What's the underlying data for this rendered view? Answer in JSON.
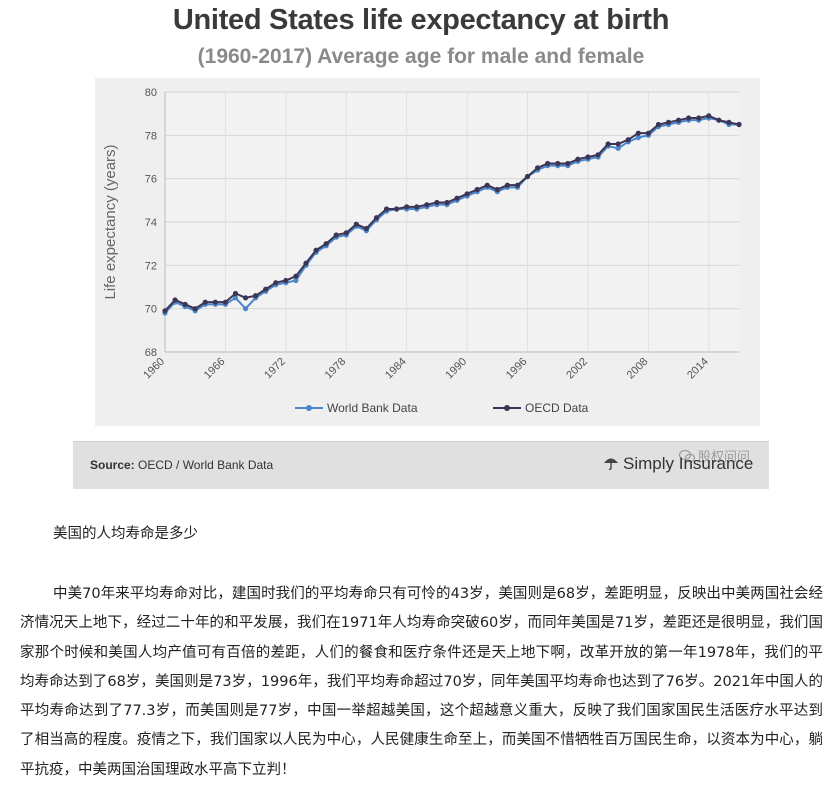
{
  "title": "United States life expectancy at birth",
  "subtitle": "(1960-2017) Average age for male and female",
  "source_label": "Source:",
  "source_text": " OECD / World Bank Data",
  "brand": "Simply Insurance",
  "watermark": "股权问问",
  "article": {
    "heading": "美国的人均寿命是多少",
    "paragraph": "中美70年来平均寿命对比，建国时我们的平均寿命只有可怜的43岁，美国则是68岁，差距明显，反映出中美两国社会经济情况天上地下，经过二十年的和平发展，我们在1971年人均寿命突破60岁，而同年美国是71岁，差距还是很明显，我们国家那个时候和美国人均产值可有百倍的差距，人们的餐食和医疗条件还是天上地下啊，改革开放的第一年1978年，我们的平均寿命达到了68岁，美国则是73岁，1996年，我们平均寿命超过70岁，同年美国平均寿命也达到了76岁。2021年中国人的平均寿命达到了77.3岁，而美国则是77岁，中国一举超越美国，这个超越意义重大，反映了我们国家国民生活医疗水平达到了相当高的程度。疫情之下，我们国家以人民为中心，人民健康生命至上，而美国不惜牺牲百万国民生命，以资本为中心，躺平抗疫，中美两国治国理政水平高下立判！"
  },
  "chart_data": {
    "type": "line",
    "ylabel": "Life expectancy (years)",
    "xlabel": "",
    "ylim": [
      68,
      80
    ],
    "yticks": [
      "68",
      "70",
      "72",
      "74",
      "76",
      "78",
      "80"
    ],
    "xticks": [
      "1960",
      "1966",
      "1972",
      "1978",
      "1984",
      "1990",
      "1996",
      "2002",
      "2008",
      "2014"
    ],
    "xlim": [
      1960,
      2017
    ],
    "grid": true,
    "legend_position": "bottom",
    "colors": {
      "world_bank": "#4a86c8",
      "oecd": "#3c3556"
    },
    "x": [
      1960,
      1961,
      1962,
      1963,
      1964,
      1965,
      1966,
      1967,
      1968,
      1969,
      1970,
      1971,
      1972,
      1973,
      1974,
      1975,
      1976,
      1977,
      1978,
      1979,
      1980,
      1981,
      1982,
      1983,
      1984,
      1985,
      1986,
      1987,
      1988,
      1989,
      1990,
      1991,
      1992,
      1993,
      1994,
      1995,
      1996,
      1997,
      1998,
      1999,
      2000,
      2001,
      2002,
      2003,
      2004,
      2005,
      2006,
      2007,
      2008,
      2009,
      2010,
      2011,
      2012,
      2013,
      2014,
      2015,
      2016,
      2017
    ],
    "series": [
      {
        "name": "World Bank Data",
        "values": [
          69.8,
          70.3,
          70.1,
          69.9,
          70.2,
          70.2,
          70.2,
          70.5,
          70.0,
          70.5,
          70.8,
          71.1,
          71.2,
          71.3,
          72.0,
          72.6,
          72.9,
          73.3,
          73.4,
          73.8,
          73.6,
          74.1,
          74.5,
          74.6,
          74.6,
          74.6,
          74.7,
          74.8,
          74.8,
          75.0,
          75.2,
          75.4,
          75.6,
          75.4,
          75.6,
          75.6,
          76.1,
          76.4,
          76.6,
          76.6,
          76.6,
          76.8,
          76.9,
          77.0,
          77.5,
          77.4,
          77.7,
          77.9,
          78.0,
          78.4,
          78.5,
          78.6,
          78.7,
          78.7,
          78.8,
          78.7,
          78.5,
          78.5
        ]
      },
      {
        "name": "OECD Data",
        "values": [
          69.9,
          70.4,
          70.2,
          70.0,
          70.3,
          70.3,
          70.3,
          70.7,
          70.5,
          70.6,
          70.9,
          71.2,
          71.3,
          71.5,
          72.1,
          72.7,
          73.0,
          73.4,
          73.5,
          73.9,
          73.7,
          74.2,
          74.6,
          74.6,
          74.7,
          74.7,
          74.8,
          74.9,
          74.9,
          75.1,
          75.3,
          75.5,
          75.7,
          75.5,
          75.7,
          75.7,
          76.1,
          76.5,
          76.7,
          76.7,
          76.7,
          76.9,
          77.0,
          77.1,
          77.6,
          77.6,
          77.8,
          78.1,
          78.1,
          78.5,
          78.6,
          78.7,
          78.8,
          78.8,
          78.9,
          78.7,
          78.6,
          78.5
        ]
      }
    ]
  }
}
